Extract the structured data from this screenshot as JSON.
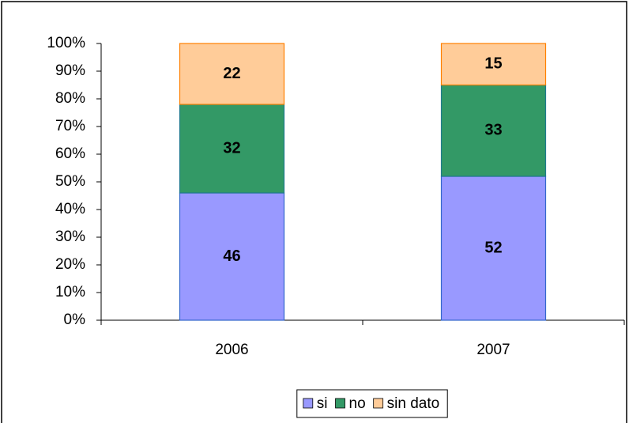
{
  "chart_data": {
    "type": "stacked_bar",
    "categories": [
      "2006",
      "2007"
    ],
    "series": [
      {
        "name": "si",
        "color": "#9999ff",
        "values": [
          46,
          52
        ]
      },
      {
        "name": "no",
        "color": "#339966",
        "values": [
          32,
          33
        ]
      },
      {
        "name": "sin dato",
        "color": "#ffcc99",
        "values": [
          22,
          15
        ]
      }
    ],
    "ylim": [
      0,
      100
    ],
    "yticks": [
      {
        "value": 0,
        "label": "0%"
      },
      {
        "value": 10,
        "label": "10%"
      },
      {
        "value": 20,
        "label": "20%"
      },
      {
        "value": 30,
        "label": "30%"
      },
      {
        "value": 40,
        "label": "40%"
      },
      {
        "value": 50,
        "label": "50%"
      },
      {
        "value": 60,
        "label": "60%"
      },
      {
        "value": 70,
        "label": "70%"
      },
      {
        "value": 80,
        "label": "80%"
      },
      {
        "value": 90,
        "label": "90%"
      },
      {
        "value": 100,
        "label": "100%"
      }
    ],
    "legend": "bottom"
  }
}
